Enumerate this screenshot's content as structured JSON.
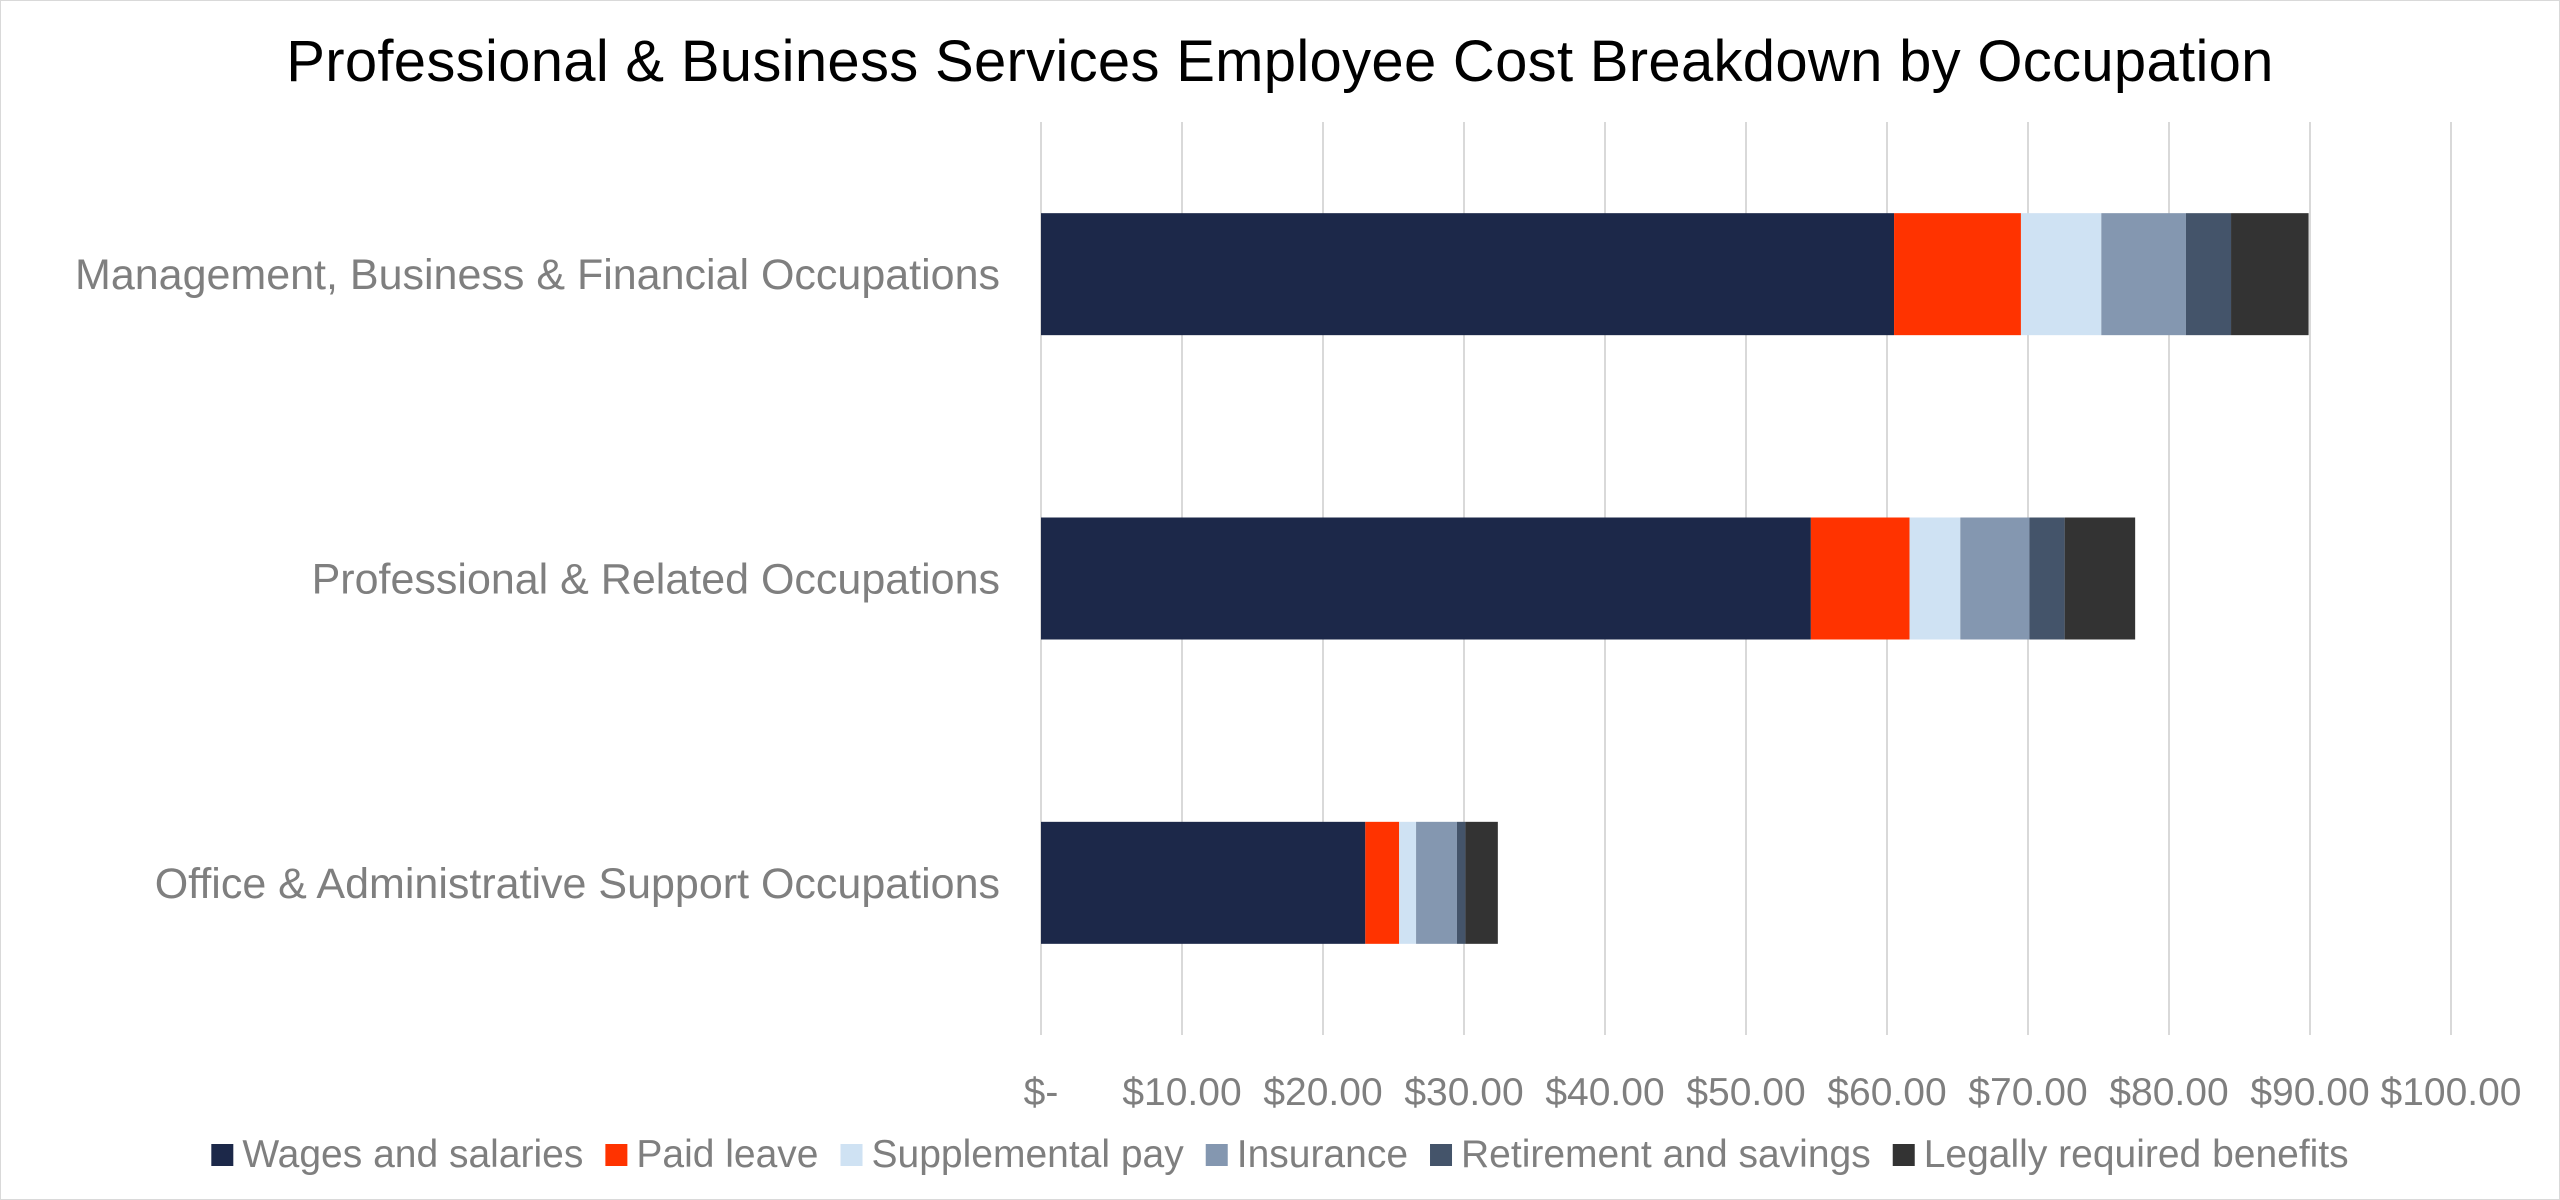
{
  "chart_data": {
    "type": "bar",
    "orientation": "horizontal",
    "stacked": true,
    "title": "Professional & Business Services Employee Cost Breakdown by Occupation",
    "xlabel": "",
    "ylabel": "",
    "categories": [
      "Management, Business & Financial Occupations",
      "Professional & Related Occupations",
      "Office & Administrative Support Occupations"
    ],
    "series": [
      {
        "name": "Wages and salaries",
        "color": "#1c2849",
        "values": [
          60.5,
          54.6,
          23.0
        ]
      },
      {
        "name": "Paid leave",
        "color": "#ff3300",
        "values": [
          9.0,
          7.0,
          2.4
        ]
      },
      {
        "name": "Supplemental pay",
        "color": "#cfe2f3",
        "values": [
          5.7,
          3.6,
          1.2
        ]
      },
      {
        "name": "Insurance",
        "color": "#8497b0",
        "values": [
          6.0,
          4.9,
          2.9
        ]
      },
      {
        "name": "Retirement and savings",
        "color": "#44546a",
        "values": [
          3.2,
          2.5,
          0.6
        ]
      },
      {
        "name": "Legally required benefits",
        "color": "#333333",
        "values": [
          5.5,
          5.0,
          2.3
        ]
      }
    ],
    "xlim": [
      0,
      100
    ],
    "tick_values": [
      0,
      10,
      20,
      30,
      40,
      50,
      60,
      70,
      80,
      90,
      100
    ],
    "tick_labels": [
      "$-",
      "$10.00",
      "$20.00",
      "$30.00",
      "$40.00",
      "$50.00",
      "$60.00",
      "$70.00",
      "$80.00",
      "$90.00",
      "$100.00"
    ],
    "grid": true,
    "legend_position": "bottom"
  }
}
